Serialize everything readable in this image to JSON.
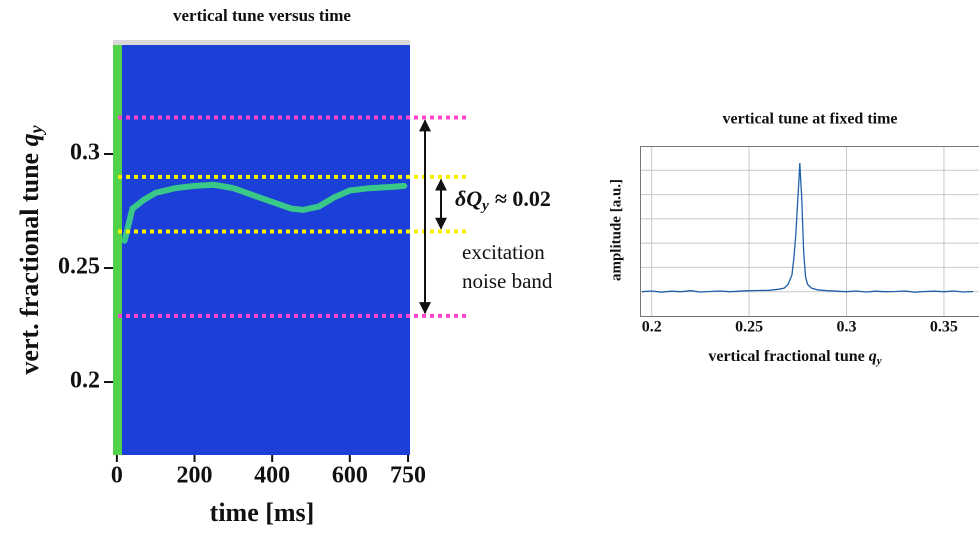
{
  "chart_data": [
    {
      "type": "heatmap",
      "title": "vertical tune versus time",
      "x_label": "time [ms]",
      "y_label_text": "vert. fractional tune ",
      "y_label_symbol": "q",
      "y_label_subscript": "y",
      "xlim": [
        -10,
        755
      ],
      "xticks": [
        0,
        200,
        400,
        600,
        750
      ],
      "ylim": [
        0.168,
        0.35
      ],
      "yticks": [
        0.2,
        0.25,
        0.3
      ],
      "series": [
        {
          "name": "tune",
          "color": "#3fe07a",
          "x": [
            20,
            40,
            70,
            100,
            150,
            200,
            250,
            300,
            350,
            400,
            450,
            480,
            520,
            560,
            600,
            650,
            700,
            740
          ],
          "values": [
            0.262,
            0.276,
            0.28,
            0.283,
            0.285,
            0.286,
            0.2865,
            0.285,
            0.282,
            0.279,
            0.276,
            0.2755,
            0.277,
            0.281,
            0.284,
            0.285,
            0.2855,
            0.286
          ]
        }
      ],
      "bands": [
        {
          "color": "#ff44cc",
          "values": [
            0.229,
            0.316
          ]
        },
        {
          "color": "#f5f000",
          "values": [
            0.266,
            0.29
          ]
        }
      ],
      "annotation_symbol": "δQ",
      "annotation_subscript": "y",
      "annotation_value": "≈ 0.02",
      "annotation_line1": "excitation",
      "annotation_line2": "noise band"
    },
    {
      "type": "line",
      "title": "vertical tune at fixed time",
      "x_label_text": "vertical fractional tune ",
      "x_label_symbol": "q",
      "x_label_subscript": "y",
      "y_label": "amplitude [a.u.]",
      "xlim": [
        0.194,
        0.368
      ],
      "xticks": [
        0.2,
        0.25,
        0.3,
        0.35
      ],
      "ylim": [
        0,
        7
      ],
      "ygrid": [
        1,
        2,
        3,
        4,
        5,
        6
      ],
      "series": [
        {
          "name": "spectrum",
          "color": "#1f5fa8",
          "x": [
            0.195,
            0.2,
            0.205,
            0.21,
            0.215,
            0.22,
            0.225,
            0.23,
            0.235,
            0.24,
            0.245,
            0.25,
            0.255,
            0.26,
            0.265,
            0.268,
            0.27,
            0.272,
            0.273,
            0.274,
            0.275,
            0.2755,
            0.276,
            0.2765,
            0.277,
            0.278,
            0.279,
            0.28,
            0.282,
            0.285,
            0.29,
            0.295,
            0.3,
            0.305,
            0.31,
            0.315,
            0.32,
            0.325,
            0.33,
            0.335,
            0.34,
            0.345,
            0.35,
            0.355,
            0.36,
            0.365
          ],
          "values": [
            1.0,
            1.03,
            0.98,
            1.02,
            1.0,
            1.04,
            0.99,
            1.01,
            1.03,
            1.0,
            1.02,
            1.04,
            1.05,
            1.06,
            1.1,
            1.15,
            1.3,
            1.7,
            2.4,
            3.4,
            4.8,
            5.5,
            6.3,
            5.6,
            4.9,
            2.6,
            1.6,
            1.3,
            1.15,
            1.08,
            1.04,
            1.02,
            1.0,
            1.03,
            0.99,
            1.02,
            1.0,
            1.01,
            1.03,
            0.98,
            1.01,
            1.02,
            1.0,
            1.03,
            0.99,
            1.01
          ]
        }
      ]
    }
  ]
}
